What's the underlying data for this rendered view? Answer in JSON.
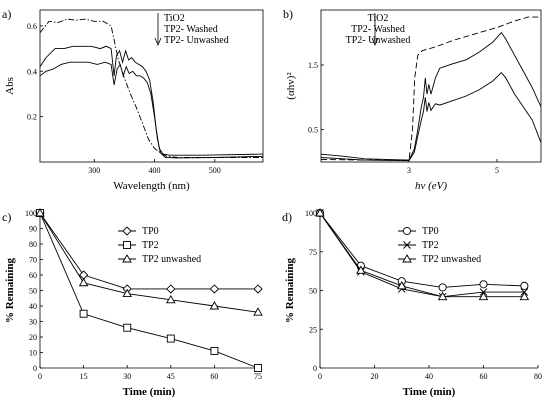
{
  "chart_data": [
    {
      "id": "a",
      "panel_label": "a)",
      "type": "line",
      "xlabel": "Wavelength (nm)",
      "ylabel": "Abs",
      "xlim": [
        210,
        580
      ],
      "ylim": [
        0,
        0.67
      ],
      "xticks": [
        300,
        400,
        500
      ],
      "yticks": [
        0.2,
        0.4,
        0.6
      ],
      "xtick_labels": [
        "300",
        "400",
        "500"
      ],
      "ytick_labels": [
        "0.2",
        "0.4",
        "0.6"
      ],
      "legend": {
        "position": "top-right",
        "entries": [
          "TiO2",
          "TP2- Washed",
          "TP2- Unwashed"
        ],
        "arrow": true
      },
      "series": [
        {
          "name": "TiO2",
          "style": "dashdot",
          "points": [
            [
              210,
              0.57
            ],
            [
              225,
              0.62
            ],
            [
              240,
              0.615
            ],
            [
              255,
              0.63
            ],
            [
              270,
              0.625
            ],
            [
              285,
              0.63
            ],
            [
              300,
              0.62
            ],
            [
              315,
              0.62
            ],
            [
              328,
              0.6
            ],
            [
              332,
              0.55
            ],
            [
              340,
              0.45
            ],
            [
              350,
              0.37
            ],
            [
              360,
              0.3
            ],
            [
              370,
              0.24
            ],
            [
              380,
              0.17
            ],
            [
              390,
              0.1
            ],
            [
              400,
              0.06
            ],
            [
              410,
              0.04
            ],
            [
              420,
              0.025
            ],
            [
              440,
              0.02
            ],
            [
              500,
              0.02
            ],
            [
              580,
              0.02
            ]
          ]
        },
        {
          "name": "TP2- Washed",
          "style": "solid",
          "points": [
            [
              210,
              0.42
            ],
            [
              220,
              0.46
            ],
            [
              235,
              0.5
            ],
            [
              250,
              0.5
            ],
            [
              265,
              0.51
            ],
            [
              280,
              0.51
            ],
            [
              295,
              0.51
            ],
            [
              310,
              0.5
            ],
            [
              320,
              0.51
            ],
            [
              328,
              0.5
            ],
            [
              333,
              0.38
            ],
            [
              337,
              0.47
            ],
            [
              342,
              0.49
            ],
            [
              347,
              0.44
            ],
            [
              352,
              0.49
            ],
            [
              357,
              0.45
            ],
            [
              362,
              0.46
            ],
            [
              368,
              0.44
            ],
            [
              374,
              0.43
            ],
            [
              380,
              0.42
            ],
            [
              386,
              0.4
            ],
            [
              392,
              0.36
            ],
            [
              398,
              0.26
            ],
            [
              403,
              0.14
            ],
            [
              408,
              0.06
            ],
            [
              414,
              0.035
            ],
            [
              425,
              0.03
            ],
            [
              480,
              0.03
            ],
            [
              580,
              0.035
            ]
          ]
        },
        {
          "name": "TP2- Unwashed",
          "style": "solid",
          "points": [
            [
              210,
              0.38
            ],
            [
              220,
              0.4
            ],
            [
              232,
              0.41
            ],
            [
              245,
              0.43
            ],
            [
              260,
              0.44
            ],
            [
              275,
              0.44
            ],
            [
              290,
              0.44
            ],
            [
              305,
              0.43
            ],
            [
              318,
              0.44
            ],
            [
              328,
              0.43
            ],
            [
              333,
              0.34
            ],
            [
              338,
              0.41
            ],
            [
              343,
              0.43
            ],
            [
              348,
              0.38
            ],
            [
              353,
              0.42
            ],
            [
              358,
              0.39
            ],
            [
              364,
              0.4
            ],
            [
              370,
              0.38
            ],
            [
              376,
              0.38
            ],
            [
              382,
              0.37
            ],
            [
              388,
              0.35
            ],
            [
              394,
              0.3
            ],
            [
              400,
              0.2
            ],
            [
              405,
              0.1
            ],
            [
              410,
              0.04
            ],
            [
              418,
              0.02
            ],
            [
              440,
              0.018
            ],
            [
              500,
              0.02
            ],
            [
              580,
              0.025
            ]
          ]
        }
      ]
    },
    {
      "id": "b",
      "panel_label": "b)",
      "type": "line",
      "xlabel": "hv (eV)",
      "ylabel": "(αhv)²",
      "xlim": [
        1.0,
        6.0
      ],
      "ylim": [
        0,
        2.35
      ],
      "xticks": [
        3,
        5
      ],
      "yticks": [
        0.5,
        1.5
      ],
      "xtick_labels": [
        "3",
        "5"
      ],
      "ytick_labels": [
        "0.5",
        "1.5"
      ],
      "legend": {
        "position": "top",
        "entries": [
          "TiO2",
          "TP2- Washed",
          "TP2- Unwashed"
        ],
        "arrow": true
      },
      "series": [
        {
          "name": "TiO2",
          "style": "dashed",
          "points": [
            [
              1.0,
              0.04
            ],
            [
              2.0,
              0.03
            ],
            [
              3.0,
              0.03
            ],
            [
              3.08,
              0.5
            ],
            [
              3.13,
              1.3
            ],
            [
              3.2,
              1.65
            ],
            [
              3.3,
              1.72
            ],
            [
              3.6,
              1.78
            ],
            [
              4.0,
              1.88
            ],
            [
              4.5,
              1.98
            ],
            [
              5.0,
              2.08
            ],
            [
              5.4,
              2.18
            ],
            [
              5.7,
              2.24
            ],
            [
              6.0,
              2.24
            ]
          ]
        },
        {
          "name": "TP2- Washed",
          "style": "solid",
          "points": [
            [
              1.0,
              0.12
            ],
            [
              1.5,
              0.09
            ],
            [
              2.0,
              0.05
            ],
            [
              3.0,
              0.03
            ],
            [
              3.12,
              0.2
            ],
            [
              3.2,
              0.5
            ],
            [
              3.28,
              0.85
            ],
            [
              3.33,
              1.0
            ],
            [
              3.37,
              1.3
            ],
            [
              3.41,
              1.05
            ],
            [
              3.45,
              1.2
            ],
            [
              3.5,
              1.05
            ],
            [
              3.6,
              1.3
            ],
            [
              3.7,
              1.45
            ],
            [
              4.0,
              1.52
            ],
            [
              4.3,
              1.58
            ],
            [
              4.6,
              1.7
            ],
            [
              4.9,
              1.85
            ],
            [
              5.1,
              2.0
            ],
            [
              5.2,
              1.9
            ],
            [
              5.4,
              1.65
            ],
            [
              5.6,
              1.4
            ],
            [
              5.8,
              1.15
            ],
            [
              6.0,
              0.85
            ]
          ]
        },
        {
          "name": "TP2- Unwashed",
          "style": "solid",
          "points": [
            [
              1.0,
              0.07
            ],
            [
              1.5,
              0.05
            ],
            [
              2.0,
              0.03
            ],
            [
              3.0,
              0.02
            ],
            [
              3.12,
              0.15
            ],
            [
              3.2,
              0.4
            ],
            [
              3.28,
              0.65
            ],
            [
              3.33,
              0.78
            ],
            [
              3.37,
              1.0
            ],
            [
              3.41,
              0.78
            ],
            [
              3.45,
              0.92
            ],
            [
              3.5,
              0.8
            ],
            [
              3.6,
              0.9
            ],
            [
              3.7,
              0.88
            ],
            [
              4.0,
              0.95
            ],
            [
              4.3,
              1.02
            ],
            [
              4.6,
              1.12
            ],
            [
              4.9,
              1.25
            ],
            [
              5.1,
              1.38
            ],
            [
              5.2,
              1.3
            ],
            [
              5.4,
              1.05
            ],
            [
              5.6,
              0.85
            ],
            [
              5.8,
              0.65
            ],
            [
              6.0,
              0.3
            ]
          ]
        }
      ]
    },
    {
      "id": "c",
      "panel_label": "c)",
      "type": "line",
      "xlabel": "Time (min)",
      "ylabel": "% Remaining",
      "xlim": [
        0,
        75
      ],
      "ylim": [
        0,
        100
      ],
      "xticks": [
        0,
        15,
        30,
        45,
        60,
        75
      ],
      "yticks": [
        0,
        10,
        20,
        30,
        40,
        50,
        60,
        70,
        80,
        90,
        100
      ],
      "xtick_labels": [
        "0",
        "15",
        "30",
        "45",
        "60",
        "75"
      ],
      "ytick_labels": [
        "0",
        "10",
        "20",
        "30",
        "40",
        "50",
        "60",
        "70",
        "80",
        "90",
        "100"
      ],
      "legend": {
        "position": "top-center",
        "entries": [
          "TP0",
          "TP2",
          "TP2 unwashed"
        ]
      },
      "x": [
        0,
        15,
        30,
        45,
        60,
        75
      ],
      "series": [
        {
          "name": "TP0",
          "marker": "diamond",
          "values": [
            100,
            60,
            51,
            51,
            51,
            51
          ]
        },
        {
          "name": "TP2",
          "marker": "square",
          "values": [
            100,
            35,
            26,
            19,
            11,
            0
          ]
        },
        {
          "name": "TP2 unwashed",
          "marker": "triangle",
          "values": [
            100,
            55,
            48,
            44,
            40,
            36
          ]
        }
      ]
    },
    {
      "id": "d",
      "panel_label": "d)",
      "type": "line",
      "xlabel": "Time (min)",
      "ylabel": "% Remaining",
      "xlim": [
        0,
        80
      ],
      "ylim": [
        0,
        100
      ],
      "xticks": [
        0,
        20,
        40,
        60,
        80
      ],
      "yticks": [
        0,
        25,
        50,
        75,
        100
      ],
      "xtick_labels": [
        "0",
        "20",
        "40",
        "60",
        "80"
      ],
      "ytick_labels": [
        "0",
        "25",
        "50",
        "75",
        "100"
      ],
      "legend": {
        "position": "top-center",
        "entries": [
          "TP0",
          "TP2",
          "TP2 unwashed"
        ]
      },
      "x": [
        0,
        15,
        30,
        45,
        60,
        75
      ],
      "series": [
        {
          "name": "TP0",
          "marker": "circle",
          "values": [
            100,
            66,
            56,
            52,
            54,
            53
          ]
        },
        {
          "name": "TP2",
          "marker": "x",
          "values": [
            100,
            62,
            51,
            46,
            49,
            49
          ]
        },
        {
          "name": "TP2 unwashed",
          "marker": "triangle",
          "values": [
            100,
            63,
            53,
            46,
            46,
            46
          ]
        }
      ]
    }
  ]
}
